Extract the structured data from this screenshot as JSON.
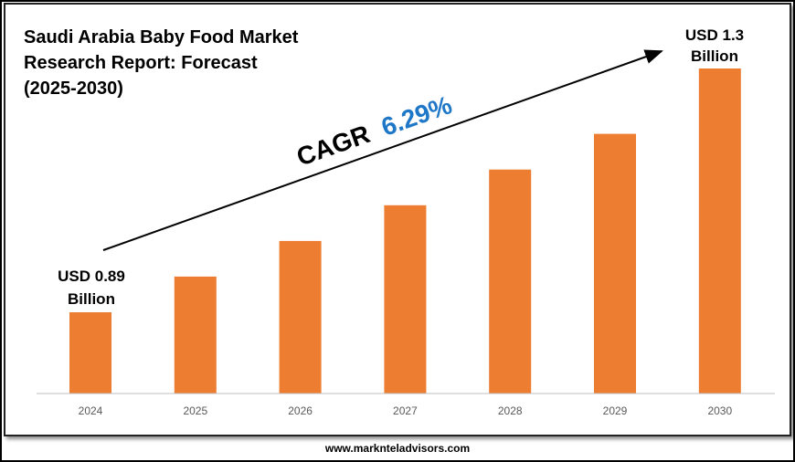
{
  "title": "Saudi Arabia Baby Food Market\nResearch Report: Forecast\n(2025-2030)",
  "footer": {
    "url": "www.marknteladvisors.com"
  },
  "cagr": {
    "label": "CAGR",
    "value": "6.29%",
    "label_color": "#000000",
    "value_color": "#1f77c8"
  },
  "start_annotation": {
    "line1": "USD 0.89",
    "line2": "Billion"
  },
  "end_annotation": {
    "line1": "USD 1.3",
    "line2": "Billion"
  },
  "colors": {
    "bar": "#ed7d31",
    "axis": "#bfbfbf"
  },
  "chart_data": {
    "type": "bar",
    "categories": [
      "2024",
      "2025",
      "2026",
      "2027",
      "2028",
      "2029",
      "2030"
    ],
    "values": [
      0.89,
      0.95,
      1.01,
      1.07,
      1.13,
      1.19,
      1.3
    ],
    "unit": "USD Billion",
    "title": "Saudi Arabia Baby Food Market Research Report: Forecast (2025-2030)",
    "grid": false,
    "legend": "none"
  }
}
